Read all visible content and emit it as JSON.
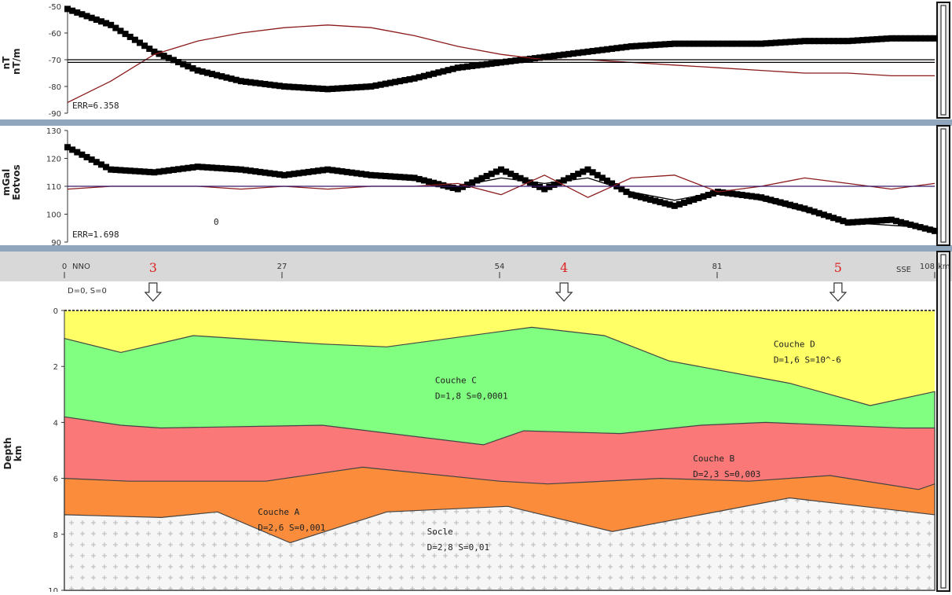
{
  "chart_data": [
    {
      "type": "line",
      "panel": "magnetic",
      "ylabel_lines": [
        "nT",
        "nT/m"
      ],
      "ylim": [
        -90,
        -50
      ],
      "yticks": [
        -90,
        -80,
        -70,
        -60,
        -50
      ],
      "ytick_labels": [
        "-90",
        "-80",
        "-70",
        "-60",
        "-50"
      ],
      "err_label": "ERR=6.358",
      "series": [
        {
          "role": "observed",
          "style": "black squares",
          "x": [
            0,
            5,
            10,
            15,
            20,
            25,
            30,
            35,
            40,
            45,
            50,
            55,
            60,
            65,
            70,
            75,
            80,
            85,
            90,
            95,
            100
          ],
          "y": [
            -51,
            -57,
            -67,
            -74,
            -78,
            -80,
            -81,
            -80,
            -77,
            -73,
            -71,
            -69,
            -67,
            -65,
            -64,
            -64,
            -64,
            -63,
            -63,
            -62,
            -62
          ]
        },
        {
          "role": "calculated",
          "style": "dark red line",
          "x": [
            0,
            5,
            10,
            15,
            20,
            25,
            30,
            35,
            40,
            45,
            50,
            55,
            60,
            65,
            70,
            75,
            80,
            85,
            90,
            95,
            100
          ],
          "y": [
            -86,
            -78,
            -68,
            -63,
            -60,
            -58,
            -57,
            -58,
            -61,
            -65,
            -68,
            -70,
            -70,
            -71,
            -72,
            -73,
            -74,
            -75,
            -75,
            -76,
            -76
          ]
        },
        {
          "role": "reference",
          "style": "black line",
          "x": [
            0,
            100
          ],
          "y": [
            -70,
            -70
          ]
        },
        {
          "role": "reference",
          "style": "black line",
          "x": [
            0,
            100
          ],
          "y": [
            -71,
            -71
          ]
        }
      ]
    },
    {
      "type": "line",
      "panel": "gravity",
      "ylabel_lines": [
        "mGal",
        "Eotvos"
      ],
      "ylim": [
        90,
        130
      ],
      "yticks": [
        90,
        100,
        110,
        120,
        130
      ],
      "ytick_labels": [
        "90",
        "100",
        "110",
        "120",
        "130"
      ],
      "err_label": "ERR=1.698",
      "annotation": "0",
      "series": [
        {
          "role": "observed",
          "style": "black squares",
          "x": [
            0,
            5,
            10,
            15,
            20,
            25,
            30,
            35,
            40,
            45,
            50,
            55,
            60,
            65,
            70,
            75,
            80,
            85,
            90,
            95,
            100
          ],
          "y": [
            124,
            116,
            115,
            117,
            116,
            114,
            116,
            114,
            113,
            109,
            116,
            109,
            116,
            107,
            103,
            108,
            106,
            102,
            97,
            98,
            94
          ]
        },
        {
          "role": "calculated",
          "style": "black line",
          "x": [
            0,
            5,
            10,
            15,
            20,
            25,
            30,
            35,
            40,
            45,
            50,
            55,
            60,
            65,
            70,
            75,
            80,
            85,
            90,
            95,
            100
          ],
          "y": [
            124,
            116,
            115,
            117,
            116,
            114,
            116,
            114,
            113,
            110,
            113,
            111,
            113,
            108,
            105,
            108,
            105,
            101,
            97,
            96,
            95
          ]
        },
        {
          "role": "residual",
          "style": "dark red line",
          "x": [
            0,
            5,
            10,
            15,
            20,
            25,
            30,
            35,
            40,
            45,
            50,
            55,
            60,
            65,
            70,
            75,
            80,
            85,
            90,
            95,
            100
          ],
          "y": [
            109,
            110,
            110,
            110,
            109,
            110,
            109,
            110,
            110,
            111,
            107,
            114,
            106,
            113,
            114,
            108,
            110,
            113,
            111,
            109,
            111
          ]
        },
        {
          "role": "reference",
          "style": "purple line",
          "x": [
            0,
            100
          ],
          "y": [
            110,
            110
          ]
        }
      ]
    },
    {
      "type": "area",
      "panel": "section",
      "ylabel_lines": [
        "Depth",
        "km"
      ],
      "ylim": [
        0,
        10
      ],
      "yticks": [
        0,
        2,
        4,
        6,
        8,
        10
      ],
      "ytick_labels": [
        "0",
        "2",
        "4",
        "6",
        "8",
        "10"
      ],
      "xlim": [
        0,
        108
      ],
      "xticks": [
        0,
        27,
        54,
        81,
        108
      ],
      "xtick_labels": [
        "0",
        "27",
        "54",
        "81",
        "108"
      ],
      "x_unit": "km",
      "left_direction": "NNO",
      "right_direction": "SSE",
      "top_layer_label": "D=0, S=0",
      "markers": [
        {
          "label": "3",
          "x": 11
        },
        {
          "label": "4",
          "x": 62
        },
        {
          "label": "5",
          "x": 96
        }
      ],
      "layers": [
        {
          "name": "Couche D",
          "props": "D=1,6  S=10^-6",
          "color": "#ffff66",
          "label_at": [
            88,
            1.3
          ],
          "x": [
            0,
            108
          ],
          "top": [
            0,
            0
          ]
        },
        {
          "name": "Couche C",
          "props": "D=1,8  S=0,0001",
          "color": "#80ff80",
          "label_at": [
            46,
            2.6
          ],
          "x": [
            0,
            7,
            16,
            32,
            40,
            58,
            67,
            75,
            90,
            100,
            108
          ],
          "top": [
            1.0,
            1.5,
            0.9,
            1.2,
            1.3,
            0.6,
            0.9,
            1.8,
            2.6,
            3.4,
            2.9
          ]
        },
        {
          "name": "Couche B",
          "props": "D=2,3  S=0,003",
          "color": "#fa7878",
          "label_at": [
            78,
            5.4
          ],
          "x": [
            0,
            7,
            12,
            32,
            52,
            57,
            69,
            79,
            87,
            104,
            108
          ],
          "top": [
            3.8,
            4.1,
            4.2,
            4.1,
            4.8,
            4.3,
            4.4,
            4.1,
            4.0,
            4.2,
            4.2
          ]
        },
        {
          "name": "Couche A",
          "props": "D=2,6  S=0,001",
          "color": "#fa8c3c",
          "label_at": [
            24,
            7.3
          ],
          "x": [
            0,
            8,
            25,
            37,
            54,
            60,
            74,
            85,
            95,
            106,
            108
          ],
          "top": [
            6.0,
            6.1,
            6.1,
            5.6,
            6.1,
            6.2,
            6.0,
            6.1,
            5.9,
            6.4,
            6.2
          ]
        },
        {
          "name": "Socle",
          "props": "D=2,8  S=0,01",
          "color": "#f4f4f4",
          "label_at": [
            45,
            8.0
          ],
          "x": [
            0,
            12,
            19,
            28,
            40,
            55,
            68,
            90,
            99,
            108
          ],
          "top": [
            7.3,
            7.4,
            7.2,
            8.3,
            7.2,
            7.0,
            7.9,
            6.7,
            7.0,
            7.3
          ]
        }
      ]
    }
  ]
}
